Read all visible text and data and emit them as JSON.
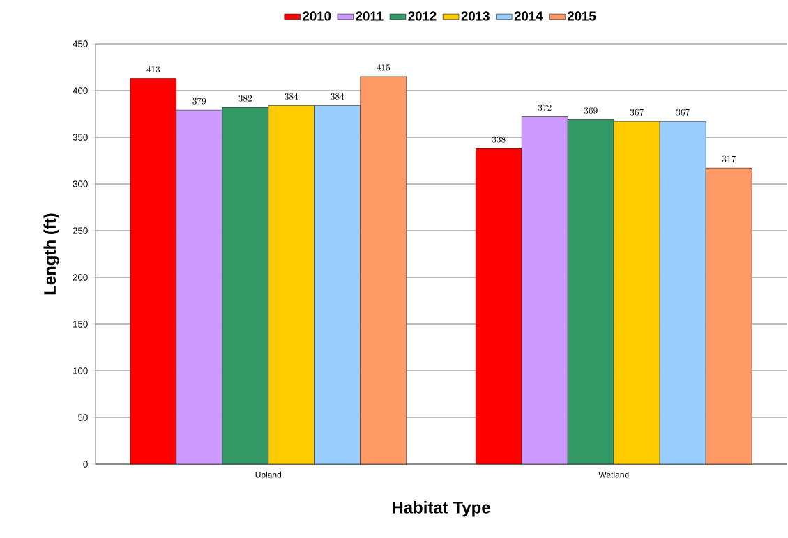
{
  "chart_data": {
    "type": "bar",
    "xlabel": "Habitat Type",
    "ylabel": "Length (ft)",
    "categories": [
      "Upland",
      "Wetland"
    ],
    "series": [
      {
        "name": "2010",
        "color": "#ff0000",
        "values": [
          413,
          338
        ]
      },
      {
        "name": "2011",
        "color": "#cc99ff",
        "values": [
          379,
          372
        ]
      },
      {
        "name": "2012",
        "color": "#339966",
        "values": [
          382,
          369
        ]
      },
      {
        "name": "2013",
        "color": "#ffcc00",
        "values": [
          384,
          367
        ]
      },
      {
        "name": "2014",
        "color": "#99ccff",
        "values": [
          384,
          367
        ]
      },
      {
        "name": "2015",
        "color": "#ff9966",
        "values": [
          415,
          317
        ]
      }
    ],
    "ylim": [
      0,
      450
    ],
    "yticks": [
      0,
      50,
      100,
      150,
      200,
      250,
      300,
      350,
      400,
      450
    ],
    "grid": "y",
    "legend": "top",
    "data_labels": true
  }
}
